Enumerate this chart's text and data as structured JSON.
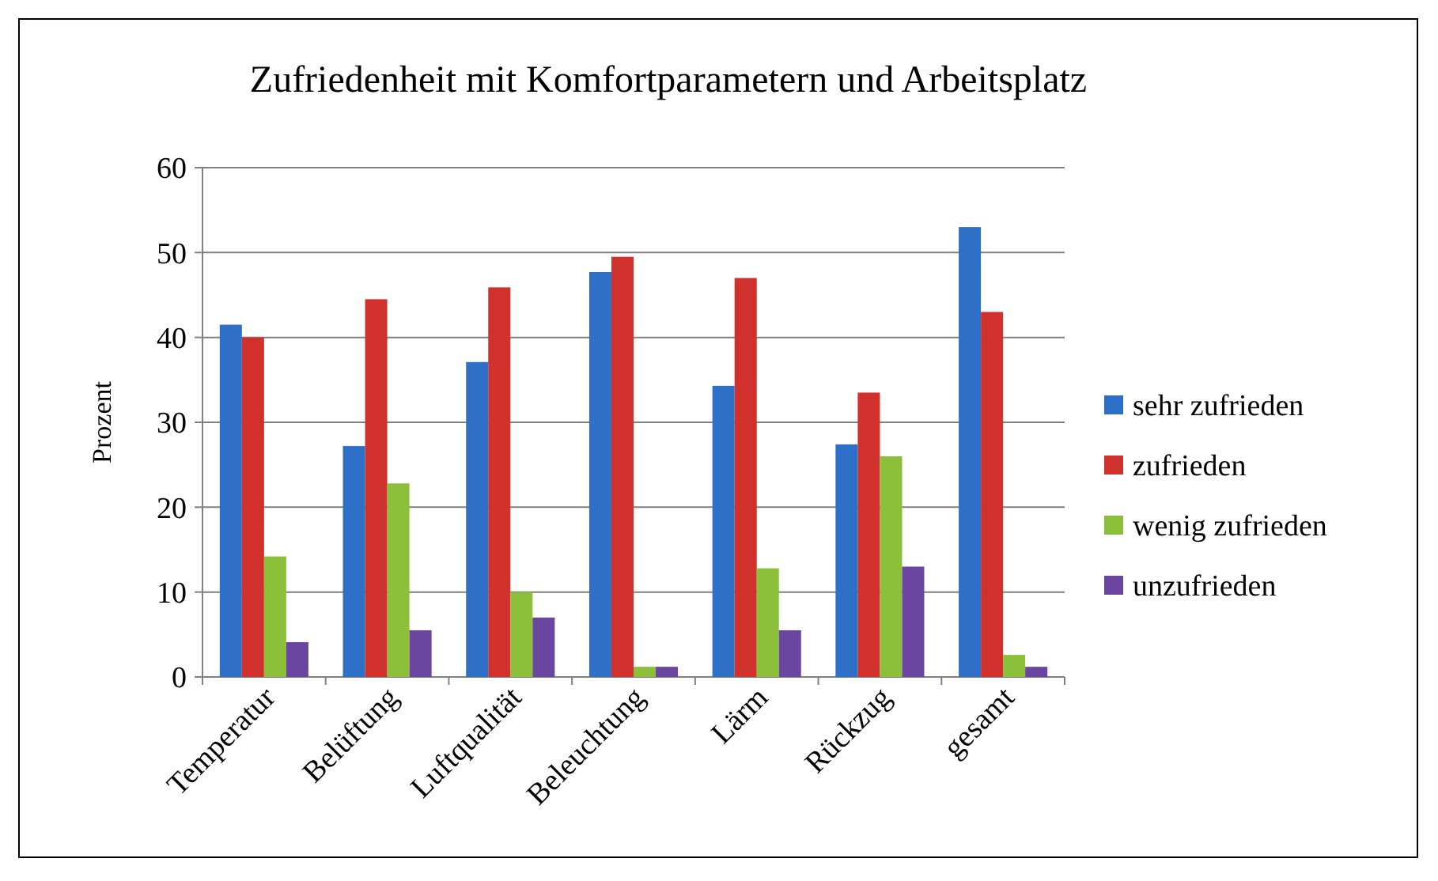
{
  "chart_data": {
    "type": "bar",
    "title": "Zufriedenheit mit Komfortparametern und Arbeitsplatz",
    "ylabel": "Prozent",
    "categories": [
      "Temperatur",
      "Belüftung",
      "Luftqualität",
      "Beleuchtung",
      "Lärm",
      "Rückzug",
      "gesamt"
    ],
    "series": [
      {
        "name": "sehr zufrieden",
        "color": "#2e6fc8",
        "values": [
          41.5,
          27.2,
          37.1,
          47.7,
          34.3,
          27.4,
          53
        ]
      },
      {
        "name": "zufrieden",
        "color": "#d0312d",
        "values": [
          40,
          44.5,
          45.9,
          49.5,
          47,
          33.5,
          43
        ]
      },
      {
        "name": "wenig zufrieden",
        "color": "#8cc03a",
        "values": [
          14.2,
          22.8,
          10,
          1.2,
          12.8,
          26,
          2.6
        ]
      },
      {
        "name": "unzufrieden",
        "color": "#6a46a0",
        "values": [
          4.1,
          5.5,
          7,
          1.2,
          5.5,
          13,
          1.2
        ]
      }
    ],
    "ylim": [
      0,
      60
    ],
    "yticks": [
      0,
      10,
      20,
      30,
      40,
      50,
      60
    ],
    "grid": "y",
    "legend": "right"
  }
}
